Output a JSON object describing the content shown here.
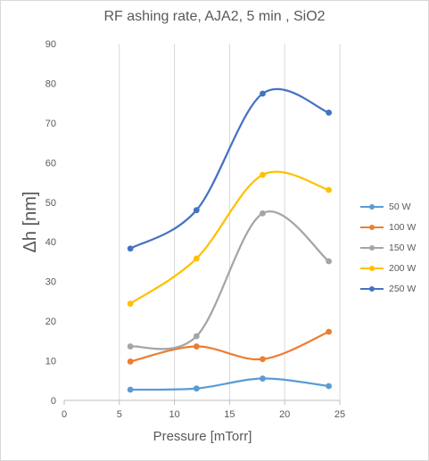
{
  "chart_data": {
    "type": "line",
    "title": "RF ashing rate, AJA2, 5 min , SiO2",
    "xlabel": "Pressure [mTorr]",
    "ylabel": "Δh [nm]",
    "xlim": [
      0,
      25
    ],
    "ylim": [
      0,
      90
    ],
    "x_ticks": [
      0,
      5,
      10,
      15,
      20,
      25
    ],
    "y_ticks": [
      0,
      10,
      20,
      30,
      40,
      50,
      60,
      70,
      80,
      90
    ],
    "x": [
      6,
      12,
      18,
      24
    ],
    "grid": "vertical",
    "legend_position": "right",
    "smooth": true,
    "series": [
      {
        "name": "50 W",
        "color": "#5b9bd5",
        "values": [
          2.7,
          3.0,
          5.5,
          3.6
        ]
      },
      {
        "name": "100 W",
        "color": "#ed7d31",
        "values": [
          9.8,
          13.6,
          10.4,
          17.3
        ]
      },
      {
        "name": "150 W",
        "color": "#a5a5a5",
        "values": [
          13.6,
          16.2,
          47.2,
          35.1
        ]
      },
      {
        "name": "200 W",
        "color": "#ffc000",
        "values": [
          24.4,
          35.8,
          56.9,
          53.1
        ]
      },
      {
        "name": "250 W",
        "color": "#4472c4",
        "values": [
          38.3,
          48.0,
          77.4,
          72.6
        ]
      }
    ]
  }
}
